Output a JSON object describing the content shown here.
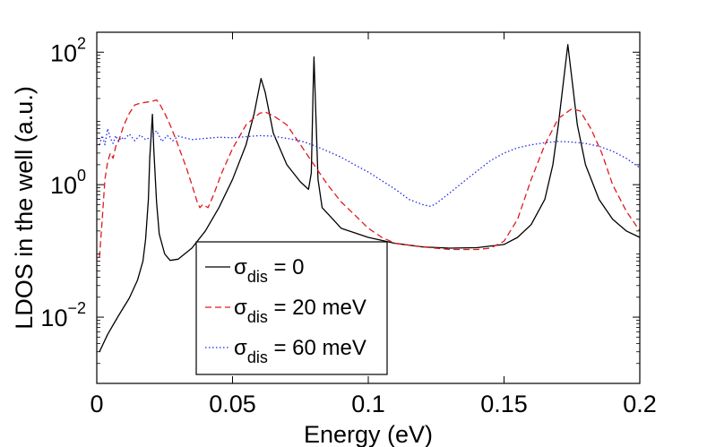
{
  "chart_data": {
    "type": "line",
    "xlabel": "Energy (eV)",
    "ylabel": "LDOS in the well (a.u.)",
    "xlim": [
      0,
      0.2
    ],
    "ylim": [
      0.001,
      200
    ],
    "yscale": "log",
    "xticks": [
      {
        "value": 0,
        "label": "0"
      },
      {
        "value": 0.05,
        "label": "0.05"
      },
      {
        "value": 0.1,
        "label": "0.1"
      },
      {
        "value": 0.15,
        "label": "0.15"
      },
      {
        "value": 0.2,
        "label": "0.2"
      }
    ],
    "yticks": [
      {
        "value": 0.01,
        "base": "10",
        "exp": "−2"
      },
      {
        "value": 1,
        "base": "10",
        "exp": "0"
      },
      {
        "value": 100,
        "base": "10",
        "exp": "2"
      }
    ],
    "grid": false,
    "legend_position": "bottom-center",
    "series": [
      {
        "label_symbol": "σ",
        "label_sub": "dis",
        "label_rest": " = 0",
        "color": "#000000",
        "dash": "solid",
        "points": [
          [
            0.001,
            0.003
          ],
          [
            0.004,
            0.0055
          ],
          [
            0.008,
            0.0105
          ],
          [
            0.012,
            0.0195
          ],
          [
            0.015,
            0.036
          ],
          [
            0.017,
            0.07
          ],
          [
            0.018,
            0.15
          ],
          [
            0.019,
            0.6
          ],
          [
            0.0195,
            2.5
          ],
          [
            0.0205,
            11.5
          ],
          [
            0.021,
            3.5
          ],
          [
            0.022,
            0.55
          ],
          [
            0.023,
            0.18
          ],
          [
            0.025,
            0.09
          ],
          [
            0.027,
            0.072
          ],
          [
            0.03,
            0.075
          ],
          [
            0.035,
            0.11
          ],
          [
            0.04,
            0.2
          ],
          [
            0.045,
            0.45
          ],
          [
            0.05,
            1.2
          ],
          [
            0.055,
            4
          ],
          [
            0.058,
            12
          ],
          [
            0.0605,
            40
          ],
          [
            0.062,
            25
          ],
          [
            0.065,
            6
          ],
          [
            0.07,
            2
          ],
          [
            0.075,
            1.1
          ],
          [
            0.078,
            0.85
          ],
          [
            0.079,
            1.5
          ],
          [
            0.0797,
            30
          ],
          [
            0.08,
            85
          ],
          [
            0.0805,
            20
          ],
          [
            0.0815,
            1.2
          ],
          [
            0.083,
            0.45
          ],
          [
            0.087,
            0.3
          ],
          [
            0.09,
            0.22
          ],
          [
            0.1,
            0.16
          ],
          [
            0.11,
            0.13
          ],
          [
            0.12,
            0.115
          ],
          [
            0.13,
            0.11
          ],
          [
            0.14,
            0.112
          ],
          [
            0.15,
            0.125
          ],
          [
            0.155,
            0.16
          ],
          [
            0.16,
            0.25
          ],
          [
            0.165,
            0.6
          ],
          [
            0.168,
            2
          ],
          [
            0.17,
            8
          ],
          [
            0.172,
            40
          ],
          [
            0.1735,
            130
          ],
          [
            0.175,
            40
          ],
          [
            0.177,
            8
          ],
          [
            0.18,
            2
          ],
          [
            0.185,
            0.6
          ],
          [
            0.19,
            0.3
          ],
          [
            0.195,
            0.2
          ],
          [
            0.2,
            0.16
          ]
        ]
      },
      {
        "label_symbol": "σ",
        "label_sub": "dis",
        "label_rest": " = 20 meV",
        "color": "#e0191c",
        "dash": "dashed",
        "points": [
          [
            0.001,
            0.08
          ],
          [
            0.002,
            0.3
          ],
          [
            0.003,
            1.2
          ],
          [
            0.004,
            2.2
          ],
          [
            0.005,
            3.0
          ],
          [
            0.006,
            2.5
          ],
          [
            0.007,
            3.8
          ],
          [
            0.008,
            4.5
          ],
          [
            0.009,
            6
          ],
          [
            0.01,
            8
          ],
          [
            0.012,
            12
          ],
          [
            0.014,
            16
          ],
          [
            0.016,
            17
          ],
          [
            0.018,
            17.5
          ],
          [
            0.02,
            18
          ],
          [
            0.022,
            19
          ],
          [
            0.023,
            17
          ],
          [
            0.025,
            12
          ],
          [
            0.027,
            8
          ],
          [
            0.029,
            5
          ],
          [
            0.031,
            3
          ],
          [
            0.033,
            1.8
          ],
          [
            0.035,
            1.0
          ],
          [
            0.037,
            0.55
          ],
          [
            0.038,
            0.45
          ],
          [
            0.039,
            0.5
          ],
          [
            0.041,
            0.45
          ],
          [
            0.043,
            0.7
          ],
          [
            0.046,
            1.5
          ],
          [
            0.05,
            3.5
          ],
          [
            0.055,
            8
          ],
          [
            0.06,
            12
          ],
          [
            0.062,
            12.5
          ],
          [
            0.065,
            11
          ],
          [
            0.07,
            8
          ],
          [
            0.075,
            4
          ],
          [
            0.08,
            2
          ],
          [
            0.085,
            1
          ],
          [
            0.09,
            0.55
          ],
          [
            0.095,
            0.35
          ],
          [
            0.1,
            0.22
          ],
          [
            0.105,
            0.16
          ],
          [
            0.11,
            0.13
          ],
          [
            0.12,
            0.115
          ],
          [
            0.13,
            0.105
          ],
          [
            0.14,
            0.105
          ],
          [
            0.145,
            0.11
          ],
          [
            0.15,
            0.14
          ],
          [
            0.155,
            0.3
          ],
          [
            0.16,
            1.2
          ],
          [
            0.165,
            4
          ],
          [
            0.17,
            10
          ],
          [
            0.175,
            14
          ],
          [
            0.178,
            13
          ],
          [
            0.182,
            7
          ],
          [
            0.186,
            3
          ],
          [
            0.19,
            1
          ],
          [
            0.195,
            0.4
          ],
          [
            0.2,
            0.2
          ]
        ]
      },
      {
        "label_symbol": "σ",
        "label_sub": "dis",
        "label_rest": " = 60 meV",
        "color": "#1f28e8",
        "dash": "dotted",
        "points": [
          [
            0.001,
            4
          ],
          [
            0.002,
            5.5
          ],
          [
            0.003,
            4
          ],
          [
            0.004,
            7
          ],
          [
            0.005,
            5
          ],
          [
            0.006,
            4.2
          ],
          [
            0.007,
            5.5
          ],
          [
            0.008,
            4.5
          ],
          [
            0.009,
            5.2
          ],
          [
            0.01,
            4.8
          ],
          [
            0.012,
            5.8
          ],
          [
            0.014,
            4.6
          ],
          [
            0.016,
            5.6
          ],
          [
            0.018,
            4.8
          ],
          [
            0.02,
            5.2
          ],
          [
            0.022,
            6.5
          ],
          [
            0.024,
            4.5
          ],
          [
            0.026,
            5.5
          ],
          [
            0.028,
            4.6
          ],
          [
            0.03,
            5.4
          ],
          [
            0.035,
            4.8
          ],
          [
            0.04,
            5.0
          ],
          [
            0.045,
            5.2
          ],
          [
            0.05,
            5.1
          ],
          [
            0.055,
            5.3
          ],
          [
            0.06,
            5.5
          ],
          [
            0.065,
            5.4
          ],
          [
            0.07,
            5.0
          ],
          [
            0.075,
            4.6
          ],
          [
            0.08,
            3.9
          ],
          [
            0.085,
            3.2
          ],
          [
            0.09,
            2.6
          ],
          [
            0.095,
            2.0
          ],
          [
            0.1,
            1.55
          ],
          [
            0.105,
            1.15
          ],
          [
            0.11,
            0.85
          ],
          [
            0.115,
            0.6
          ],
          [
            0.12,
            0.5
          ],
          [
            0.123,
            0.47
          ],
          [
            0.125,
            0.52
          ],
          [
            0.13,
            0.75
          ],
          [
            0.135,
            1.1
          ],
          [
            0.14,
            1.6
          ],
          [
            0.145,
            2.3
          ],
          [
            0.15,
            3.0
          ],
          [
            0.155,
            3.6
          ],
          [
            0.16,
            4.0
          ],
          [
            0.165,
            4.3
          ],
          [
            0.17,
            4.5
          ],
          [
            0.175,
            4.4
          ],
          [
            0.18,
            4.2
          ],
          [
            0.185,
            3.8
          ],
          [
            0.19,
            3.2
          ],
          [
            0.195,
            2.5
          ],
          [
            0.2,
            1.8
          ]
        ]
      }
    ]
  }
}
